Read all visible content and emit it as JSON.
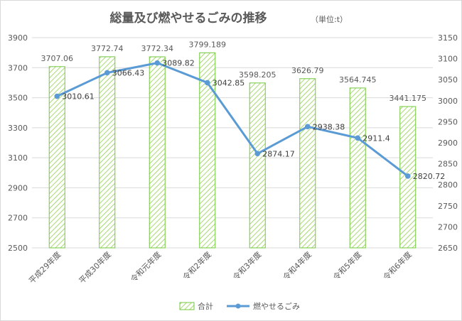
{
  "chart_data": {
    "type": "bar+line",
    "title": "総量及び燃やせるごみの推移",
    "unit": "（単位:t）",
    "categories": [
      "平成29年度",
      "平成30年度",
      "令和元年度",
      "令和2年度",
      "令和3年度",
      "令和4年度",
      "令和5年度",
      "令和6年度"
    ],
    "series": [
      {
        "name": "合計",
        "type": "bar",
        "axis": "left",
        "values": [
          3707.06,
          3772.74,
          3772.34,
          3799.189,
          3598.205,
          3626.79,
          3564.745,
          3441.175
        ],
        "labels": [
          "3707.06",
          "3772.74",
          "3772.34",
          "3799.189",
          "3598.205",
          "3626.79",
          "3564.745",
          "3441.175"
        ]
      },
      {
        "name": "燃やせるごみ",
        "type": "line",
        "axis": "right",
        "values": [
          3010.61,
          3066.43,
          3089.82,
          3042.85,
          2874.17,
          2938.38,
          2911.4,
          2820.72
        ],
        "labels": [
          "3010.61",
          "3066.43",
          "3089.82",
          "3042.85",
          "2874.17",
          "2938.38",
          "2911.4",
          "2820.72"
        ]
      }
    ],
    "y_left": {
      "min": 2500,
      "max": 3900,
      "ticks": [
        "2500",
        "2700",
        "2900",
        "3100",
        "3300",
        "3500",
        "3700",
        "3900"
      ]
    },
    "y_right": {
      "min": 2650,
      "max": 3150,
      "ticks": [
        "2650",
        "2700",
        "2750",
        "2800",
        "2850",
        "2900",
        "2950",
        "3000",
        "3050",
        "3100",
        "3150"
      ]
    },
    "grid": true,
    "legend_position": "bottom",
    "colors": {
      "bar_stroke": "#70c83c",
      "bar_hatch": "#92d050",
      "line": "#5b9bd5",
      "grid": "#d9d9d9",
      "text": "#595959",
      "title": "#595959"
    }
  }
}
